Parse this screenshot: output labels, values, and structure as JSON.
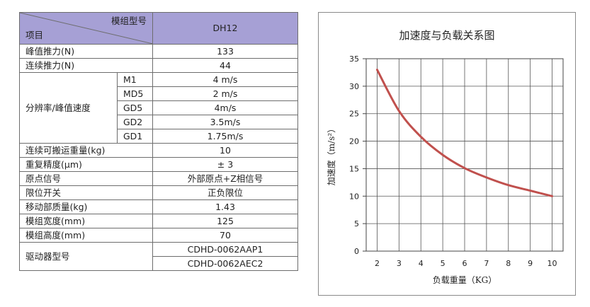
{
  "table": {
    "header": {
      "model_label": "模组型号",
      "item_label": "项目",
      "model_value": "DH12"
    },
    "rows": [
      {
        "label": "峰值推力(N)",
        "value": "133"
      },
      {
        "label": "连续推力(N)",
        "value": "44"
      },
      {
        "label": "分辨率/峰值速度",
        "sub": [
          {
            "label": "M1",
            "value": "4 m/s"
          },
          {
            "label": "MD5",
            "value": "2 m/s"
          },
          {
            "label": "GD5",
            "value": "4m/s"
          },
          {
            "label": "GD2",
            "value": "3.5m/s"
          },
          {
            "label": "GD1",
            "value": "1.75m/s"
          }
        ]
      },
      {
        "label": "连续可搬运重量(kg)",
        "value": "10"
      },
      {
        "label": "重复精度(μm)",
        "value": "± 3"
      },
      {
        "label": "原点信号",
        "value": "外部原点+Z相信号"
      },
      {
        "label": "限位开关",
        "value": "正负限位"
      },
      {
        "label": "移动部质量(kg)",
        "value": "1.43"
      },
      {
        "label": "模组宽度(mm)",
        "value": "125"
      },
      {
        "label": "模组高度(mm)",
        "value": "70"
      },
      {
        "label": "驱动器型号",
        "values": [
          "CDHD-0062AAP1",
          "CDHD-0062AEC2"
        ]
      }
    ]
  },
  "chart_data": {
    "type": "line",
    "title": "加速度与负载关系图",
    "xlabel": "负载重量（KG）",
    "ylabel": "加速度（m/s²）",
    "x": [
      2,
      3,
      4,
      5,
      6,
      7,
      8,
      9,
      10
    ],
    "series": [
      {
        "values": [
          33,
          25.5,
          20.8,
          17.5,
          15.1,
          13.4,
          12.0,
          11.0,
          10.0
        ],
        "color": "#c0504d"
      }
    ],
    "xlim": [
      1.5,
      10.5
    ],
    "ylim": [
      0,
      35
    ],
    "xticks": [
      "2",
      "3",
      "4",
      "5",
      "6",
      "7",
      "8",
      "9",
      "10"
    ],
    "yticks": [
      "0",
      "5",
      "10",
      "15",
      "20",
      "25",
      "30",
      "35"
    ],
    "grid": true,
    "legend": "none"
  }
}
